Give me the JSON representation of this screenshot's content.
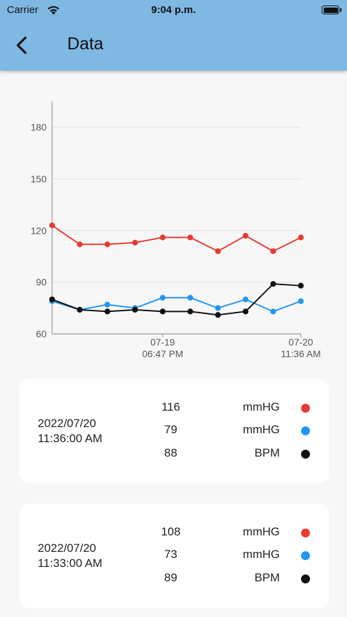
{
  "status_bar": {
    "carrier": "Carrier",
    "time": "9:04 p.m."
  },
  "header": {
    "title": "Data"
  },
  "colors": {
    "systolic": "#e63b32",
    "diastolic": "#2196f3",
    "pulse": "#111111",
    "app_bar": "#7fb8e3"
  },
  "icons": {
    "back": "chevron-left-icon",
    "wifi": "wifi-icon",
    "battery": "battery-icon"
  },
  "chart_data": {
    "type": "line",
    "y_ticks": [
      "180",
      "150",
      "120",
      "90",
      "60"
    ],
    "ylim": [
      60,
      195
    ],
    "x_ticks": [
      {
        "date": "07-19",
        "time": "06:47 PM",
        "index": 4
      },
      {
        "date": "07-20",
        "time": "11:36 AM",
        "index": 9
      }
    ],
    "grid": true,
    "series": [
      {
        "color": "#e63b32",
        "values": [
          123,
          112,
          112,
          113,
          116,
          116,
          108,
          117,
          108,
          116
        ]
      },
      {
        "color": "#2196f3",
        "values": [
          79,
          74,
          77,
          75,
          81,
          81,
          75,
          80,
          73,
          79
        ]
      },
      {
        "color": "#111111",
        "values": [
          80,
          74,
          73,
          74,
          73,
          73,
          71,
          73,
          89,
          88
        ]
      }
    ]
  },
  "records": [
    {
      "date": "2022/07/20",
      "time": "11:36:00 AM",
      "rows": [
        {
          "value": "116",
          "unit": "mmHG",
          "color": "#e63b32"
        },
        {
          "value": "79",
          "unit": "mmHG",
          "color": "#2196f3"
        },
        {
          "value": "88",
          "unit": "BPM",
          "color": "#111111"
        }
      ]
    },
    {
      "date": "2022/07/20",
      "time": "11:33:00 AM",
      "rows": [
        {
          "value": "108",
          "unit": "mmHG",
          "color": "#e63b32"
        },
        {
          "value": "73",
          "unit": "mmHG",
          "color": "#2196f3"
        },
        {
          "value": "89",
          "unit": "BPM",
          "color": "#111111"
        }
      ]
    }
  ]
}
